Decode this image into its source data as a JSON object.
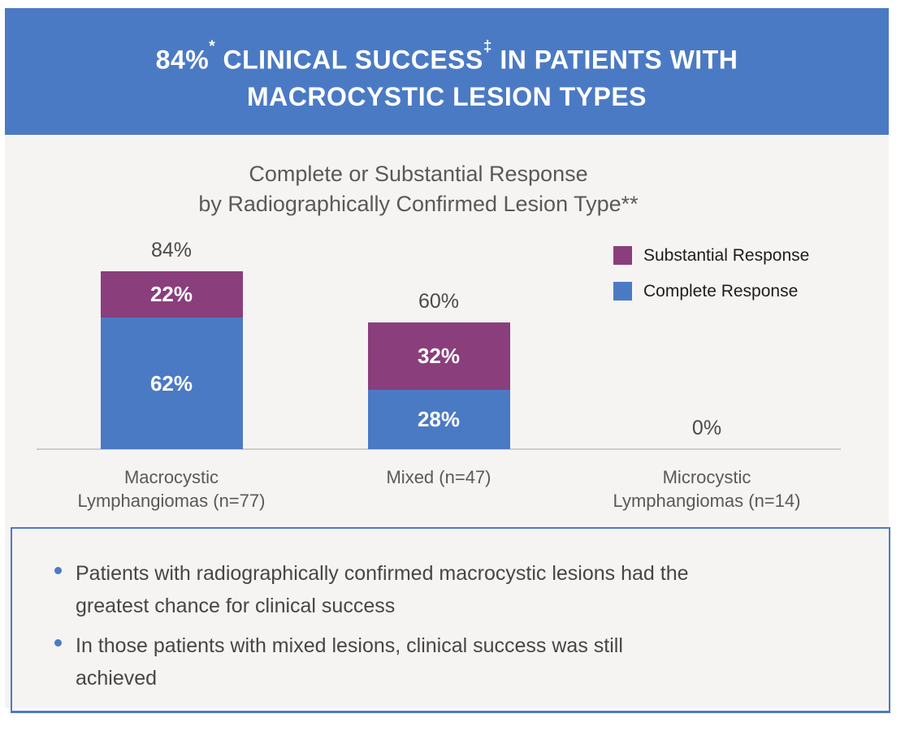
{
  "colors": {
    "accent_blue": "#4b7ac4",
    "accent_purple": "#8a3e7c",
    "chart_background": "#f5f4f2"
  },
  "banner": {
    "line1": {
      "prefix": "84%",
      "sup1": "*",
      "mid": " CLINICAL SUCCESS",
      "sup2": "‡",
      "suffix": " IN PATIENTS WITH"
    },
    "line2": "MACROCYSTIC LESION TYPES"
  },
  "chart_data": {
    "type": "bar",
    "stacked": true,
    "title": "Complete or Substantial Response\nby Radiographically Confirmed Lesion Type**",
    "categories": [
      "Macrocystic\nLymphangiomas (n=77)",
      "Mixed (n=47)",
      "Microcystic\nLymphangiomas (n=14)"
    ],
    "series": [
      {
        "name": "Complete Response",
        "color": "#4b7ac4",
        "values": [
          62,
          28,
          0
        ]
      },
      {
        "name": "Substantial Response",
        "color": "#8a3e7c",
        "values": [
          22,
          32,
          0
        ]
      }
    ],
    "totals": [
      84,
      60,
      0
    ],
    "unit": "%",
    "ylim": [
      0,
      100
    ],
    "y_axis_visible": false,
    "grid": false,
    "legend_position": "right"
  },
  "callout": {
    "bullets": [
      "Patients with radiographically confirmed macrocystic lesions had the\ngreatest chance for clinical success",
      "In those patients with mixed lesions, clinical success was still\nachieved"
    ]
  }
}
